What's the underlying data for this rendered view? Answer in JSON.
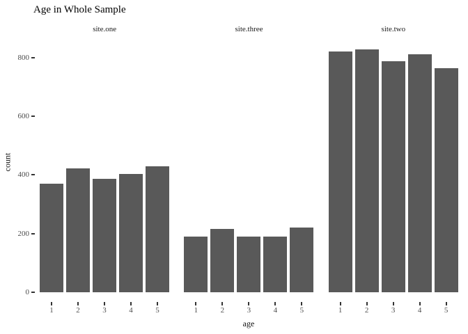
{
  "chart_data": {
    "type": "bar",
    "title": "Age in Whole Sample",
    "xlabel": "age",
    "ylabel": "count",
    "categories": [
      "1",
      "2",
      "3",
      "4",
      "5"
    ],
    "facets": [
      {
        "label": "site.one",
        "values": [
          370,
          422,
          387,
          403,
          428
        ]
      },
      {
        "label": "site.three",
        "values": [
          190,
          215,
          190,
          190,
          221
        ]
      },
      {
        "label": "site.two",
        "values": [
          820,
          828,
          787,
          810,
          764
        ]
      }
    ],
    "yticks": [
      0,
      200,
      400,
      600,
      800
    ],
    "ylim": [
      0,
      870
    ],
    "bar_color": "#595959",
    "grid": "off",
    "legend": "none",
    "layout": "faceted, 3 columns, shared y axis"
  }
}
